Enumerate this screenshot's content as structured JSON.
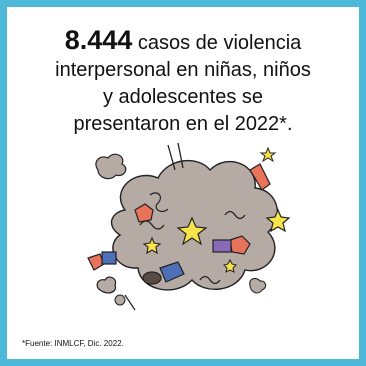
{
  "headline": {
    "number": "8.444",
    "line1_rest": "casos de violencia",
    "line2": "interpersonal en niñas, niños",
    "line3": "y adolescentes se",
    "line4": "presentaron en el 2022*."
  },
  "illustration": {
    "name": "fight-cloud-illustration",
    "colors": {
      "cloud": "#b5aba4",
      "star": "#f7e44b",
      "skin": "#e8735a",
      "purple": "#8a6ab8",
      "blue": "#4d6fb8",
      "frame": "#4db8d8"
    }
  },
  "footer": {
    "source": "*Fuente: INMLCF, Dic. 2022."
  }
}
